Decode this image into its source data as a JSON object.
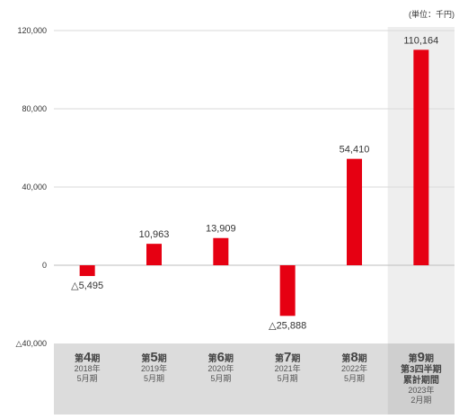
{
  "chart_data": {
    "type": "bar",
    "unit_note": "(単位：千円)",
    "categories": [
      {
        "period_prefix": "第",
        "period_num": "4",
        "period_suffix": "期",
        "extra_lines": [],
        "date_lines": [
          "2018年",
          "5月期"
        ]
      },
      {
        "period_prefix": "第",
        "period_num": "5",
        "period_suffix": "期",
        "extra_lines": [],
        "date_lines": [
          "2019年",
          "5月期"
        ]
      },
      {
        "period_prefix": "第",
        "period_num": "6",
        "period_suffix": "期",
        "extra_lines": [],
        "date_lines": [
          "2020年",
          "5月期"
        ]
      },
      {
        "period_prefix": "第",
        "period_num": "7",
        "period_suffix": "期",
        "extra_lines": [],
        "date_lines": [
          "2021年",
          "5月期"
        ]
      },
      {
        "period_prefix": "第",
        "period_num": "8",
        "period_suffix": "期",
        "extra_lines": [],
        "date_lines": [
          "2022年",
          "5月期"
        ]
      },
      {
        "period_prefix": "第",
        "period_num": "9",
        "period_suffix": "期",
        "extra_lines": [
          "第3四半期",
          "累計期間"
        ],
        "date_lines": [
          "2023年",
          "2月期"
        ]
      }
    ],
    "values": [
      -5495,
      10963,
      13909,
      -25888,
      54410,
      110164
    ],
    "value_labels": [
      "△5,495",
      "10,963",
      "13,909",
      "△25,888",
      "54,410",
      "110,164"
    ],
    "yticks": [
      120000,
      80000,
      40000,
      0,
      -40000
    ],
    "ytick_labels": [
      "120,000",
      "80,000",
      "40,000",
      "0",
      "△40,000"
    ],
    "ylim": [
      -40000,
      120000
    ],
    "highlight_index": 5,
    "grid": true,
    "colors": {
      "bar": "#e60012",
      "grid": "#d9d9d9",
      "axis_text": "#333333",
      "category_band": "#dcdcdc",
      "highlight_band": "#eeeeee",
      "category_text": "#444444"
    }
  }
}
